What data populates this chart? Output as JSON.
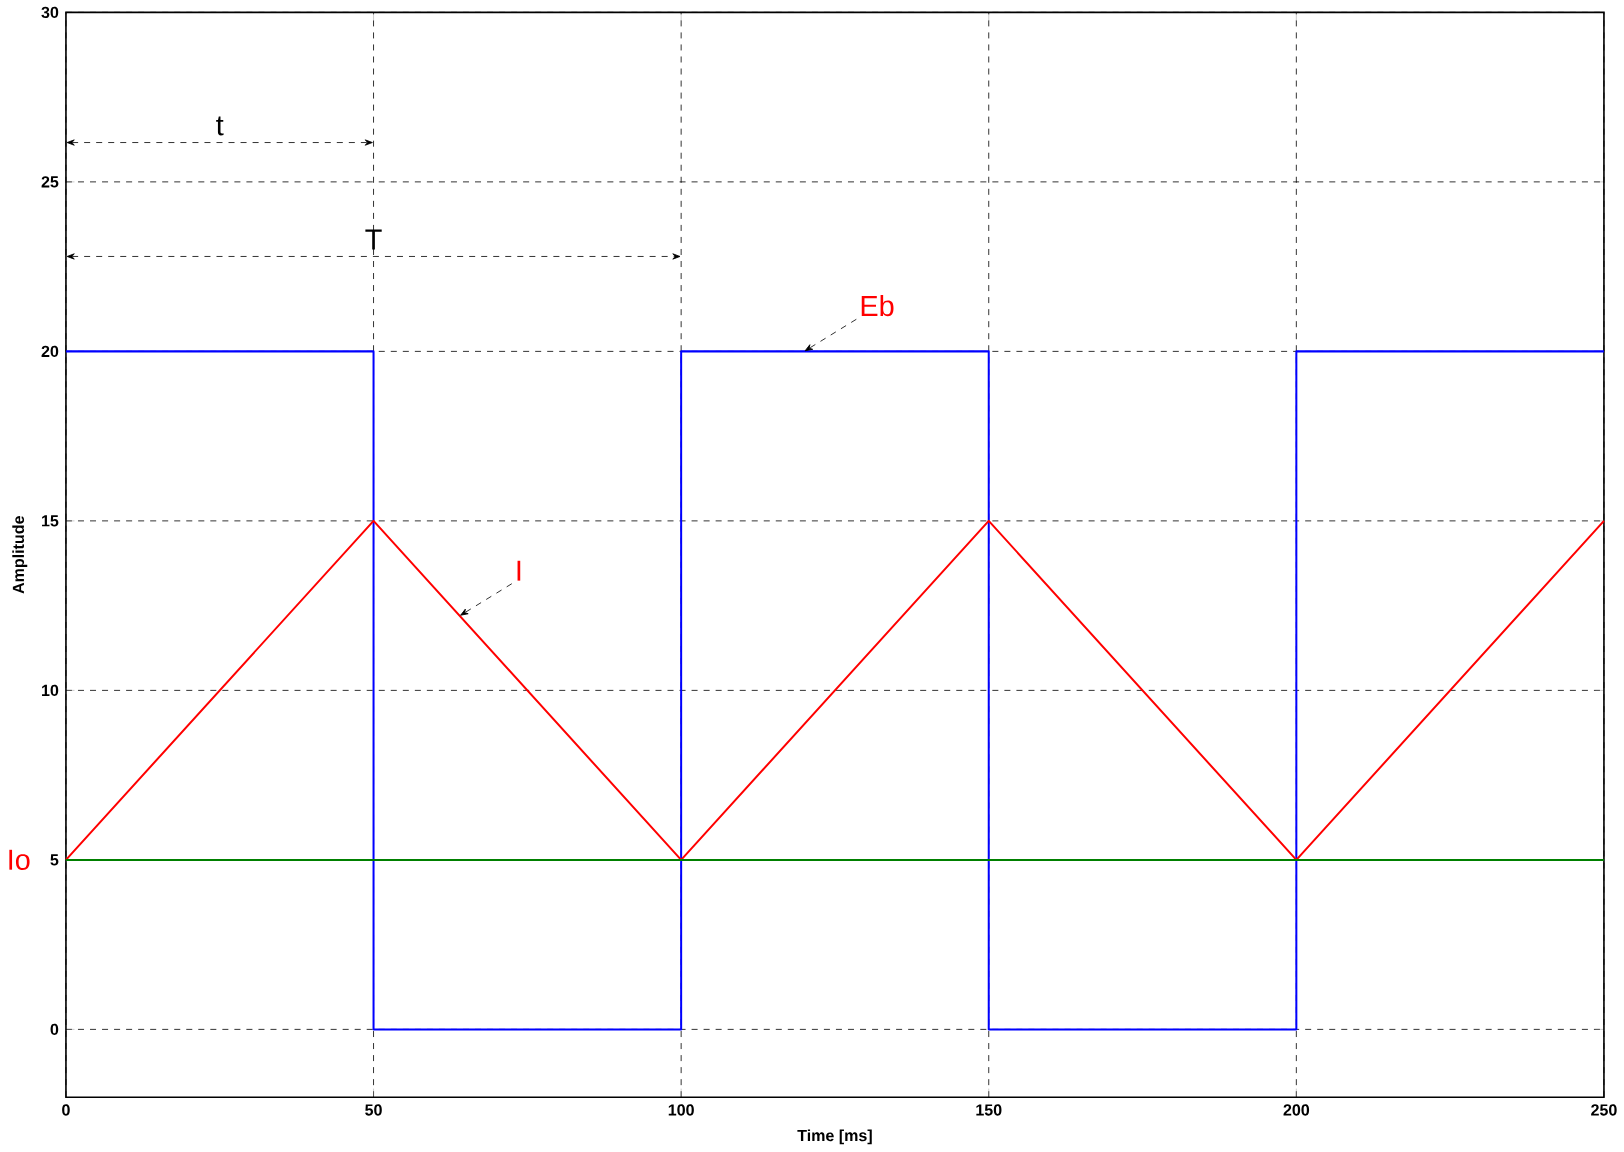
{
  "chart_data": {
    "type": "line",
    "xlabel": "Time [ms]",
    "ylabel": "Amplitude",
    "xlim": [
      0,
      250
    ],
    "ylim": [
      -2,
      30
    ],
    "xticks": [
      0,
      50,
      100,
      150,
      200,
      250
    ],
    "yticks": [
      0,
      5,
      10,
      15,
      20,
      25,
      30
    ],
    "grid": true,
    "series": [
      {
        "color": "#0000ff",
        "x": [
          0,
          50,
          50,
          100,
          100,
          150,
          150,
          200,
          200,
          250
        ],
        "values": [
          20,
          20,
          0,
          0,
          20,
          20,
          0,
          0,
          20,
          20
        ]
      },
      {
        "color": "#ff0000",
        "x": [
          0,
          50,
          100,
          150,
          200,
          250
        ],
        "values": [
          5,
          15,
          5,
          15,
          5,
          15
        ]
      },
      {
        "color": "#008000",
        "x": [
          0,
          250
        ],
        "values": [
          5,
          5
        ]
      }
    ],
    "annotations": [
      "t",
      "T",
      {
        "text": "Eb",
        "x": 120,
        "y": 20
      },
      {
        "text": "I",
        "x": 64,
        "y": 12.2
      },
      {
        "text": "Io",
        "x": 0,
        "y": 5
      }
    ]
  }
}
